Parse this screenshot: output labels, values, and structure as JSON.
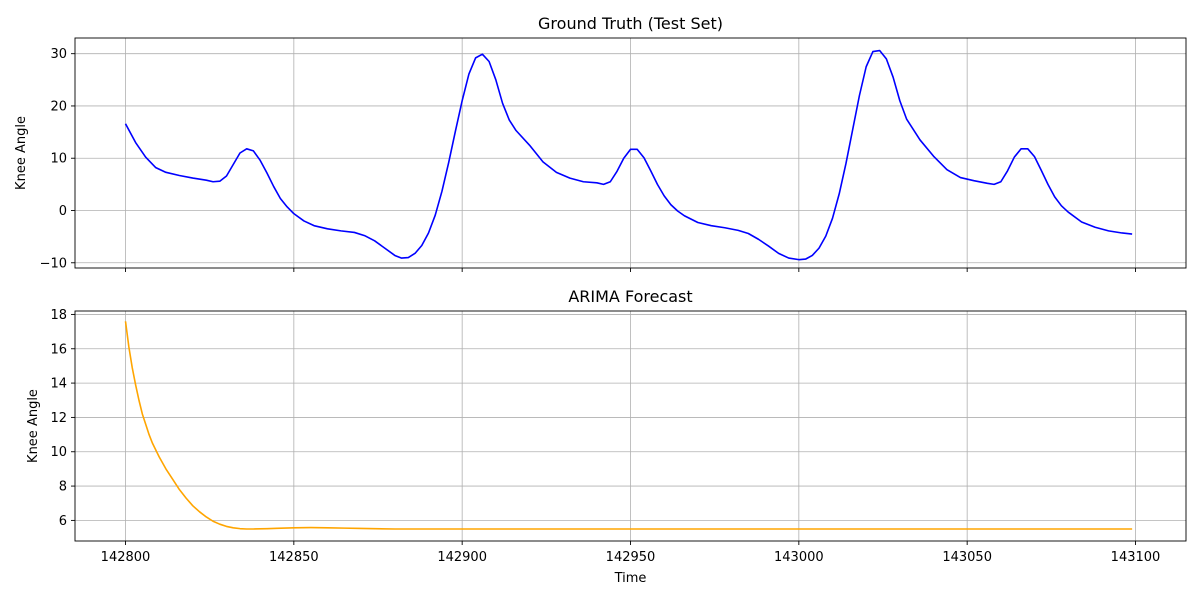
{
  "chart_data": [
    {
      "type": "line",
      "title": "Ground Truth (Test Set)",
      "xlabel": "",
      "ylabel": "Knee Angle",
      "xlim": [
        142785,
        143115
      ],
      "ylim": [
        -11,
        33
      ],
      "x_ticks": [
        142800,
        142850,
        142900,
        142950,
        143000,
        143050,
        143100
      ],
      "y_ticks": [
        -10,
        0,
        10,
        20,
        30
      ],
      "y_tick_labels": [
        "−10",
        "0",
        "10",
        "20",
        "30"
      ],
      "show_x_tick_labels": false,
      "grid": true,
      "series": [
        {
          "color": "#0000ff",
          "x": [
            142800,
            142803,
            142806,
            142809,
            142812,
            142816,
            142820,
            142824,
            142826,
            142828,
            142830,
            142832,
            142834,
            142836,
            142838,
            142840,
            142842,
            142844,
            142846,
            142848,
            142850,
            142853,
            142856,
            142860,
            142864,
            142868,
            142871,
            142874,
            142877,
            142880,
            142882,
            142884,
            142886,
            142888,
            142890,
            142892,
            142894,
            142896,
            142898,
            142900,
            142902,
            142904,
            142906,
            142908,
            142910,
            142912,
            142914,
            142916,
            142920,
            142924,
            142928,
            142932,
            142936,
            142940,
            142942,
            142944,
            142946,
            142948,
            142950,
            142952,
            142954,
            142956,
            142958,
            142960,
            142962,
            142964,
            142966,
            142970,
            142974,
            142978,
            142982,
            142985,
            142988,
            142991,
            142994,
            142997,
            143000,
            143002,
            143004,
            143006,
            143008,
            143010,
            143012,
            143014,
            143016,
            143018,
            143020,
            143022,
            143024,
            143026,
            143028,
            143030,
            143032,
            143036,
            143040,
            143044,
            143048,
            143052,
            143056,
            143058,
            143060,
            143062,
            143064,
            143066,
            143068,
            143070,
            143072,
            143074,
            143076,
            143078,
            143080,
            143084,
            143088,
            143092,
            143096,
            143099
          ],
          "y": [
            16.6,
            13,
            10.2,
            8.2,
            7.3,
            6.7,
            6.2,
            5.8,
            5.5,
            5.6,
            6.6,
            8.8,
            11,
            11.8,
            11.4,
            9.6,
            7.2,
            4.6,
            2.3,
            0.7,
            -0.6,
            -2,
            -2.9,
            -3.5,
            -3.9,
            -4.2,
            -4.8,
            -5.8,
            -7.2,
            -8.6,
            -9.1,
            -9,
            -8.2,
            -6.7,
            -4.3,
            -0.9,
            3.7,
            9.2,
            15.2,
            21,
            26.1,
            29.2,
            29.9,
            28.5,
            25,
            20.5,
            17.3,
            15.3,
            12.5,
            9.3,
            7.3,
            6.2,
            5.5,
            5.3,
            5,
            5.5,
            7.5,
            10,
            11.7,
            11.7,
            10.1,
            7.6,
            5,
            2.8,
            1.1,
            -0.1,
            -1,
            -2.3,
            -2.9,
            -3.3,
            -3.8,
            -4.4,
            -5.5,
            -6.8,
            -8.2,
            -9.1,
            -9.4,
            -9.3,
            -8.6,
            -7.2,
            -4.9,
            -1.5,
            3.2,
            9,
            15.5,
            22,
            27.5,
            30.4,
            30.6,
            29,
            25.5,
            21,
            17.5,
            13.5,
            10.4,
            7.8,
            6.3,
            5.7,
            5.2,
            5,
            5.5,
            7.6,
            10.2,
            11.8,
            11.8,
            10.3,
            7.7,
            5,
            2.6,
            0.9,
            -0.3,
            -2.2,
            -3.2,
            -3.9,
            -4.3,
            -4.5
          ]
        }
      ]
    },
    {
      "type": "line",
      "title": "ARIMA Forecast",
      "xlabel": "Time",
      "ylabel": "Knee Angle",
      "xlim": [
        142785,
        143115
      ],
      "ylim": [
        4.8,
        18.2
      ],
      "x_ticks": [
        142800,
        142850,
        142900,
        142950,
        143000,
        143050,
        143100
      ],
      "x_tick_labels": [
        "142800",
        "142850",
        "142900",
        "142950",
        "143000",
        "143050",
        "143100"
      ],
      "y_ticks": [
        6,
        8,
        10,
        12,
        14,
        16,
        18
      ],
      "y_tick_labels": [
        "6",
        "8",
        "10",
        "12",
        "14",
        "16",
        "18"
      ],
      "show_x_tick_labels": true,
      "grid": true,
      "series": [
        {
          "color": "#ffa500",
          "x": [
            142800,
            142801,
            142802,
            142803,
            142804,
            142805,
            142806,
            142807,
            142808,
            142810,
            142812,
            142814,
            142816,
            142818,
            142820,
            142822,
            142824,
            142826,
            142828,
            142830,
            142832,
            142834,
            142836,
            142838,
            142840,
            142842,
            142845,
            142850,
            142855,
            142860,
            142865,
            142870,
            142880,
            142900,
            142950,
            143000,
            143050,
            143099
          ],
          "y": [
            17.6,
            16.1,
            14.9,
            13.9,
            13,
            12.2,
            11.6,
            11,
            10.5,
            9.7,
            9,
            8.4,
            7.8,
            7.3,
            6.85,
            6.5,
            6.2,
            5.95,
            5.78,
            5.65,
            5.57,
            5.52,
            5.5,
            5.5,
            5.51,
            5.52,
            5.54,
            5.57,
            5.58,
            5.57,
            5.55,
            5.53,
            5.5,
            5.5,
            5.5,
            5.5,
            5.5,
            5.5
          ]
        }
      ]
    }
  ]
}
